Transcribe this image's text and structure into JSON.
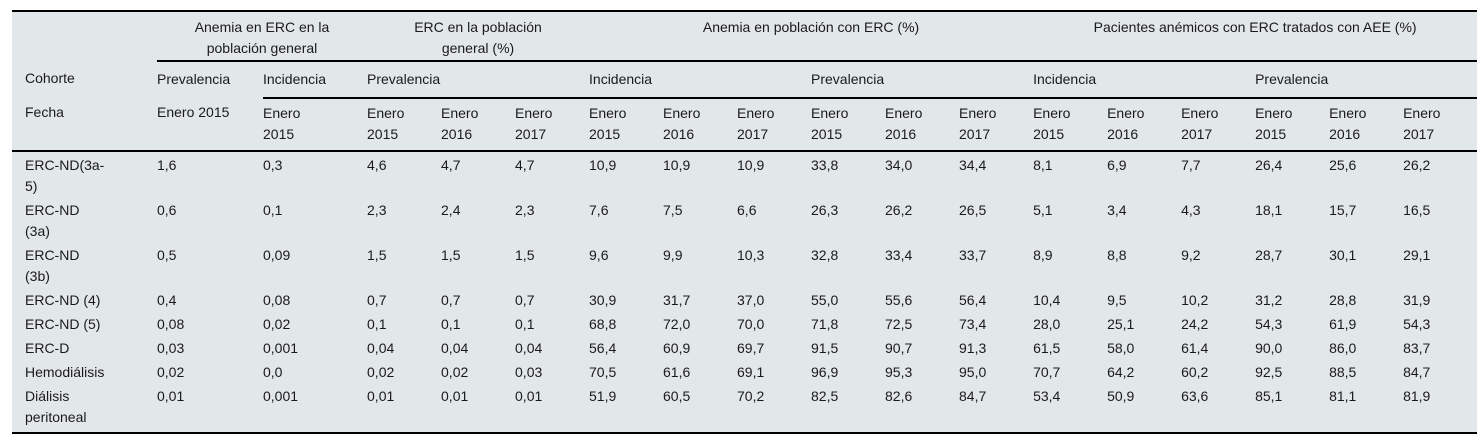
{
  "table": {
    "colors": {
      "table_background": "#e2e7ea",
      "rule": "#000000",
      "text": "#1a1a1a",
      "page_background": "#ffffff"
    },
    "groups": [
      "Anemia en ERC en la\npoblación general",
      "ERC en la población\ngeneral (%)",
      "Anemia en población con ERC (%)",
      "Pacientes anémicos con ERC tratados con AEE (%)"
    ],
    "row_label_cohorte": "Cohorte",
    "row_label_fecha": "Fecha",
    "subheaders": [
      "Prevalencia",
      "Incidencia",
      "Prevalencia",
      "Incidencia",
      "Prevalencia",
      "Incidencia",
      "Prevalencia"
    ],
    "dates": [
      "Enero 2015",
      "Enero\n2015",
      "Enero\n2015",
      "Enero\n2016",
      "Enero\n2017",
      "Enero\n2015",
      "Enero\n2016",
      "Enero\n2017",
      "Enero\n2015",
      "Enero\n2016",
      "Enero\n2017",
      "Enero\n2015",
      "Enero\n2016",
      "Enero\n2017",
      "Enero\n2015",
      "Enero\n2016",
      "Enero\n2017"
    ],
    "rows": [
      {
        "label": "ERC-ND(3a-\n5)",
        "values": [
          "1,6",
          "0,3",
          "4,6",
          "4,7",
          "4,7",
          "10,9",
          "10,9",
          "10,9",
          "33,8",
          "34,0",
          "34,4",
          "8,1",
          "6,9",
          "7,7",
          "26,4",
          "25,6",
          "26,2"
        ]
      },
      {
        "label": "ERC-ND\n(3a)",
        "values": [
          "0,6",
          "0,1",
          "2,3",
          "2,4",
          "2,3",
          "7,6",
          "7,5",
          "6,6",
          "26,3",
          "26,2",
          "26,5",
          "5,1",
          "3,4",
          "4,3",
          "18,1",
          "15,7",
          "16,5"
        ]
      },
      {
        "label": "ERC-ND\n(3b)",
        "values": [
          "0,5",
          "0,09",
          "1,5",
          "1,5",
          "1,5",
          "9,6",
          "9,9",
          "10,3",
          "32,8",
          "33,4",
          "33,7",
          "8,9",
          "8,8",
          "9,2",
          "28,7",
          "30,1",
          "29,1"
        ]
      },
      {
        "label": "ERC-ND (4)",
        "values": [
          "0,4",
          "0,08",
          "0,7",
          "0,7",
          "0,7",
          "30,9",
          "31,7",
          "37,0",
          "55,0",
          "55,6",
          "56,4",
          "10,4",
          "9,5",
          "10,2",
          "31,2",
          "28,8",
          "31,9"
        ]
      },
      {
        "label": "ERC-ND (5)",
        "values": [
          "0,08",
          "0,02",
          "0,1",
          "0,1",
          "0,1",
          "68,8",
          "72,0",
          "70,0",
          "71,8",
          "72,5",
          "73,4",
          "28,0",
          "25,1",
          "24,2",
          "54,3",
          "61,9",
          "54,3"
        ]
      },
      {
        "label": "ERC-D",
        "values": [
          "0,03",
          "0,001",
          "0,04",
          "0,04",
          "0,04",
          "56,4",
          "60,9",
          "69,7",
          "91,5",
          "90,7",
          "91,3",
          "61,5",
          "58,0",
          "61,4",
          "90,0",
          "86,0",
          "83,7"
        ]
      },
      {
        "label": "Hemodiálisis",
        "values": [
          "0,02",
          "0,0",
          "0,02",
          "0,02",
          "0,03",
          "70,5",
          "61,6",
          "69,1",
          "96,9",
          "95,3",
          "95,0",
          "70,7",
          "64,2",
          "60,2",
          "92,5",
          "88,5",
          "84,7"
        ]
      },
      {
        "label": "Diálisis\nperitoneal",
        "values": [
          "0,01",
          "0,001",
          "0,01",
          "0,01",
          "0,01",
          "51,9",
          "60,5",
          "70,2",
          "82,5",
          "82,6",
          "84,7",
          "53,4",
          "50,9",
          "63,6",
          "85,1",
          "81,1",
          "81,9"
        ]
      }
    ]
  }
}
